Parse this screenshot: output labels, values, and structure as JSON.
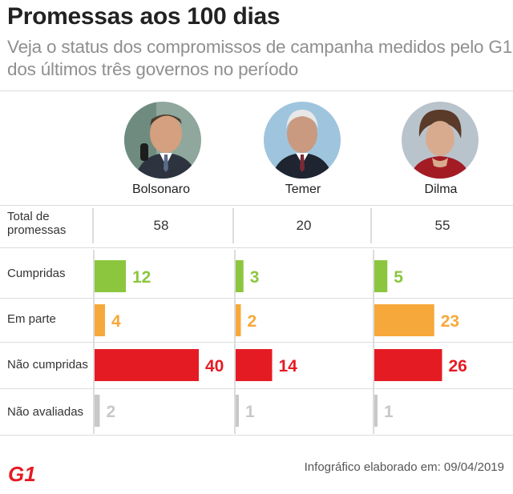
{
  "title": "Promessas aos 100 dias",
  "subtitle": "Veja o status dos compromissos de campanha medidos pelo G1 dos últimos três governos no período",
  "footer": "Infográfico elaborado em: 09/04/2019",
  "logo_text": "G1",
  "row_header": "Total de promessas",
  "chart_data": {
    "type": "bar",
    "title": "Promessas aos 100 dias",
    "categories": [
      "Cumpridas",
      "Em parte",
      "Não cumpridas",
      "Não avaliadas"
    ],
    "series": [
      {
        "name": "Bolsonaro",
        "total": 58,
        "values": [
          12,
          4,
          40,
          2
        ]
      },
      {
        "name": "Temer",
        "total": 20,
        "values": [
          3,
          2,
          14,
          1
        ]
      },
      {
        "name": "Dilma",
        "total": 55,
        "values": [
          5,
          23,
          26,
          1
        ]
      }
    ],
    "colors": {
      "Cumpridas": "#8cc63f",
      "Em parte": "#f7a83a",
      "Não cumpridas": "#e51b24",
      "Não avaliadas": "#c8c8c8",
      "brand": "#e51b24"
    }
  }
}
